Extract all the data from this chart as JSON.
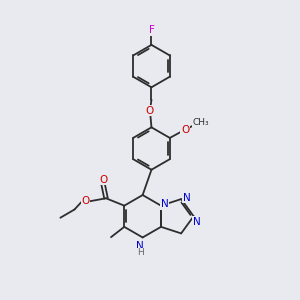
{
  "background_color": "#e8eaf0",
  "atom_colors": {
    "C": "#2d2d2d",
    "N": "#0000cc",
    "O": "#cc0000",
    "F": "#cc00cc",
    "H": "#666666"
  },
  "bond_color": "#2d2d2d",
  "line_width": 1.3,
  "font_size": 7.5,
  "figsize": [
    3.0,
    3.0
  ],
  "dpi": 100
}
